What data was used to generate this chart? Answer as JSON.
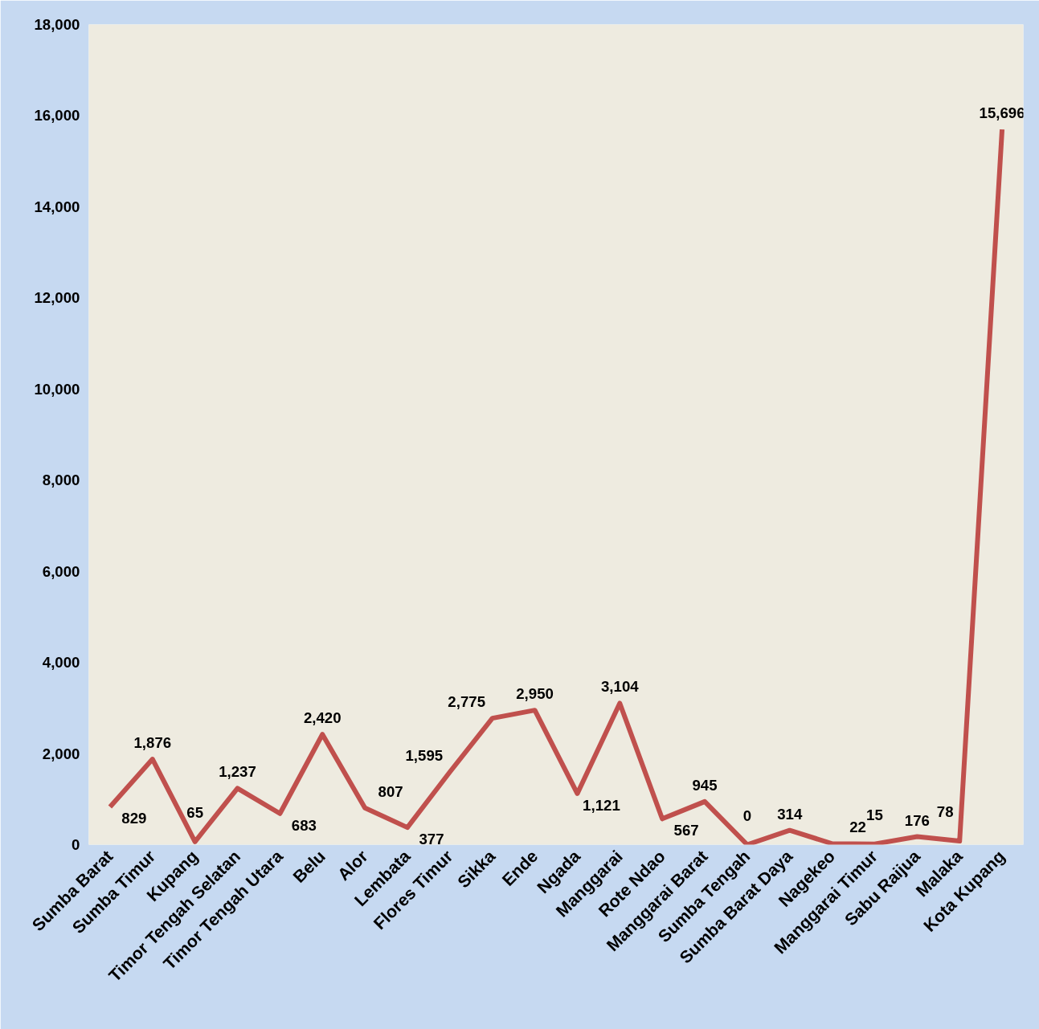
{
  "chart_data": {
    "type": "line",
    "categories": [
      "Sumba Barat",
      "Sumba Timur",
      "Kupang",
      "Timor Tengah Selatan",
      "Timor Tengah Utara",
      "Belu",
      "Alor",
      "Lembata",
      "Flores Timur",
      "Sikka",
      "Ende",
      "Ngada",
      "Manggarai",
      "Rote Ndao",
      "Manggarai Barat",
      "Sumba Tengah",
      "Sumba Barat Daya",
      "Nagekeo",
      "Manggarai Timur",
      "Sabu Raijua",
      "Malaka",
      "Kota Kupang"
    ],
    "values": [
      829,
      1876,
      65,
      1237,
      683,
      2420,
      807,
      377,
      1595,
      2775,
      2950,
      1121,
      3104,
      567,
      945,
      0,
      314,
      22,
      15,
      176,
      78,
      15696
    ],
    "color": "#c0504d",
    "ylim": [
      0,
      18000
    ],
    "yticks": [
      0,
      {
        "value": 2000,
        "label": "2,000"
      },
      {
        "value": 4000,
        "label": "4,000"
      },
      {
        "value": 6000,
        "label": "6,000"
      },
      {
        "value": 8000,
        "label": "8,000"
      },
      {
        "value": 10000,
        "label": "10,000"
      },
      {
        "value": 12000,
        "label": "12,000"
      },
      {
        "value": 14000,
        "label": "14,000"
      },
      {
        "value": 16000,
        "label": "16,000"
      },
      {
        "value": 18000,
        "label": "18,000"
      }
    ],
    "value_labels": [
      "829",
      "1,876",
      "65",
      "1,237",
      "683",
      "2,420",
      "807",
      "377",
      "1,595",
      "2,775",
      "2,950",
      "1,121",
      "3,104",
      "567",
      "945",
      "0",
      "314",
      "22",
      "15",
      "176",
      "78",
      "15,696"
    ]
  }
}
